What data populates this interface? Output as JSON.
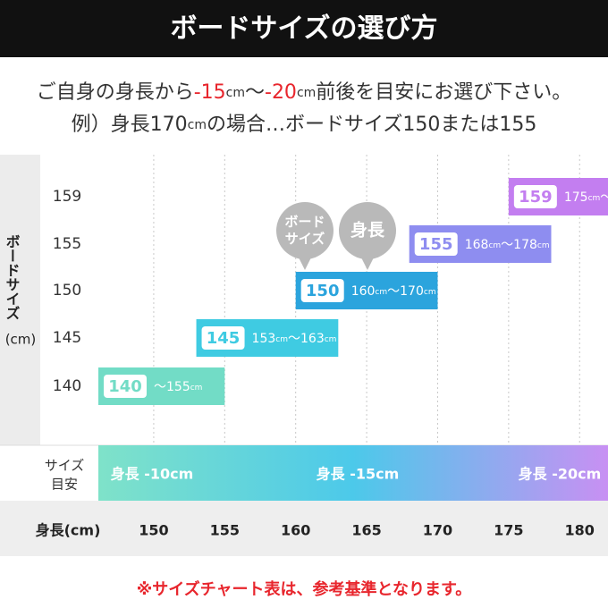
{
  "chart_data": {
    "type": "range-bar",
    "title": "ボードサイズの選び方",
    "subtitle": [
      "ご自身の身長から-15cm〜-20cm前後を目安にお選び下さい。",
      "例）身長170cmの場合…ボードサイズ150または155"
    ],
    "highlights": [
      "-15",
      "-20"
    ],
    "highlight_color": "#e8262d",
    "y_label": [
      "ボードサイズ",
      "(cm)"
    ],
    "x_label": "身長(cm)",
    "categories": [
      140,
      145,
      150,
      155,
      159
    ],
    "ranges": [
      [
        null,
        155
      ],
      [
        153,
        163
      ],
      [
        160,
        170
      ],
      [
        168,
        178
      ],
      [
        175,
        null
      ]
    ],
    "value_labels": [
      "〜155cm",
      "153cm〜163cm",
      "160cm〜170cm",
      "168cm〜178cm",
      "175cm〜"
    ],
    "colors": [
      "#72dcc6",
      "#3fcbe2",
      "#2ba4dd",
      "#8e8df0",
      "#c37ef0"
    ],
    "xlim": [
      146.1,
      182
    ],
    "xticks": [
      150,
      155,
      160,
      165,
      170,
      175,
      180
    ],
    "grid": true,
    "annotations": [
      [
        "ボード",
        "サイズ"
      ],
      [
        "身長"
      ]
    ],
    "guide": {
      "label": [
        "サイズ",
        "目安"
      ],
      "items": [
        "身長 -10cm",
        "身長 -15cm",
        "身長 -20cm"
      ]
    },
    "footnote": "※サイズチャート表は、参考基準となります。"
  }
}
